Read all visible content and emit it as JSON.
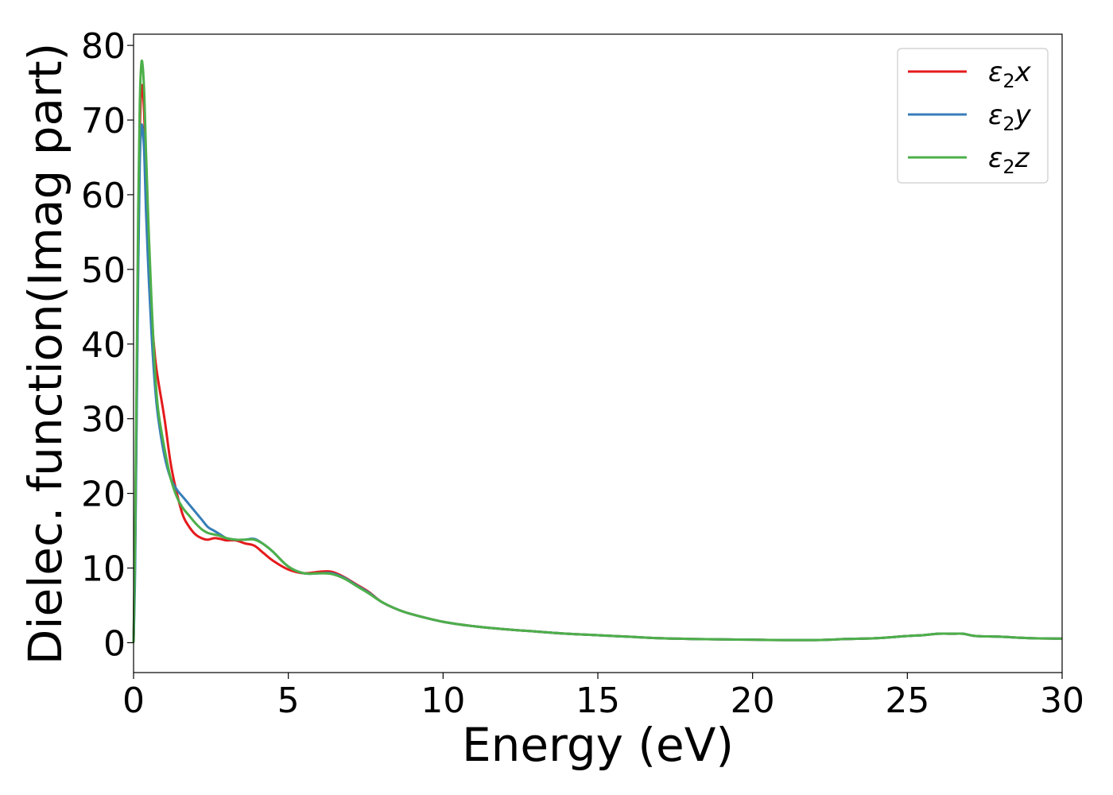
{
  "chart_data": {
    "type": "line",
    "title": "",
    "xlabel": "Energy (eV)",
    "ylabel": "Dielec. function(Imag part)",
    "xlim": [
      0,
      30
    ],
    "ylim": [
      -4,
      81.5
    ],
    "xticks": [
      0,
      5,
      10,
      15,
      20,
      25,
      30
    ],
    "yticks": [
      0,
      10,
      20,
      30,
      40,
      50,
      60,
      70,
      80
    ],
    "grid": false,
    "legend_position": "top-right",
    "series": [
      {
        "name": "ε₂x",
        "legend_base": "ε",
        "legend_sub": "2",
        "legend_suffix": "x",
        "color": "#e41a1c",
        "x": [
          0,
          0.05,
          0.1,
          0.15,
          0.2,
          0.25,
          0.3,
          0.35,
          0.4,
          0.5,
          0.6,
          0.7,
          0.8,
          1.0,
          1.2,
          1.4,
          1.6,
          1.8,
          2.0,
          2.2,
          2.4,
          2.6,
          2.8,
          3.0,
          3.3,
          3.6,
          3.9,
          4.2,
          4.5,
          5.0,
          5.5,
          6.0,
          6.4,
          6.8,
          7.2,
          7.6,
          8.0,
          8.5,
          9.0,
          10.0,
          11.0,
          12.0,
          13.0,
          14.0,
          15.0,
          16.0,
          17.0,
          18.0,
          19.0,
          20.0,
          21.0,
          22.0,
          22.5,
          23.0,
          24.0,
          25.0,
          25.5,
          26.0,
          26.5,
          26.8,
          27.2,
          28.0,
          29.0,
          30.0
        ],
        "y": [
          0,
          12,
          32,
          52,
          68,
          74,
          74,
          70,
          63,
          52,
          43,
          38,
          35,
          30,
          24,
          20,
          17,
          15.5,
          14.5,
          14,
          13.8,
          14,
          13.9,
          13.7,
          13.7,
          13.3,
          13,
          12,
          11,
          9.8,
          9.3,
          9.5,
          9.5,
          8.8,
          7.8,
          6.8,
          5.5,
          4.5,
          3.8,
          2.8,
          2.2,
          1.8,
          1.5,
          1.2,
          1.0,
          0.8,
          0.6,
          0.5,
          0.45,
          0.4,
          0.35,
          0.35,
          0.4,
          0.5,
          0.6,
          0.9,
          1.0,
          1.2,
          1.2,
          1.2,
          0.9,
          0.8,
          0.6,
          0.55
        ]
      },
      {
        "name": "ε₂y",
        "legend_base": "ε",
        "legend_sub": "2",
        "legend_suffix": "y",
        "color": "#377eb8",
        "x": [
          0,
          0.05,
          0.1,
          0.15,
          0.2,
          0.25,
          0.3,
          0.35,
          0.4,
          0.5,
          0.6,
          0.7,
          0.8,
          1.0,
          1.2,
          1.4,
          1.6,
          1.8,
          2.0,
          2.2,
          2.4,
          2.6,
          2.8,
          3.0,
          3.3,
          3.6,
          3.9,
          4.2,
          4.5,
          5.0,
          5.5,
          6.0,
          6.4,
          6.8,
          7.2,
          7.6,
          8.0,
          8.5,
          9.0,
          10.0,
          11.0,
          12.0,
          13.0,
          14.0,
          15.0,
          16.0,
          17.0,
          18.0,
          19.0,
          20.0,
          21.0,
          22.0,
          22.5,
          23.0,
          24.0,
          25.0,
          25.5,
          26.0,
          26.5,
          26.8,
          27.2,
          28.0,
          29.0,
          30.0
        ],
        "y": [
          0,
          10,
          30,
          50,
          64,
          69,
          68.5,
          65,
          58,
          48,
          40,
          34,
          30,
          25,
          22,
          20.5,
          19.5,
          18.5,
          17.5,
          16.5,
          15.5,
          15,
          14.5,
          14,
          13.8,
          13.8,
          13.9,
          13.2,
          12.2,
          10.2,
          9.3,
          9.3,
          9.3,
          8.7,
          7.7,
          6.7,
          5.5,
          4.5,
          3.8,
          2.8,
          2.2,
          1.8,
          1.5,
          1.2,
          1.0,
          0.8,
          0.6,
          0.5,
          0.45,
          0.4,
          0.35,
          0.35,
          0.4,
          0.5,
          0.6,
          0.9,
          1.0,
          1.2,
          1.2,
          1.2,
          0.9,
          0.8,
          0.6,
          0.55
        ]
      },
      {
        "name": "ε₂z",
        "legend_base": "ε",
        "legend_sub": "2",
        "legend_suffix": "z",
        "color": "#4daf4a",
        "x": [
          0,
          0.05,
          0.1,
          0.15,
          0.2,
          0.25,
          0.3,
          0.35,
          0.4,
          0.5,
          0.6,
          0.7,
          0.8,
          1.0,
          1.2,
          1.4,
          1.6,
          1.8,
          2.0,
          2.2,
          2.4,
          2.6,
          2.8,
          3.0,
          3.3,
          3.6,
          3.9,
          4.2,
          4.5,
          5.0,
          5.5,
          6.0,
          6.4,
          6.8,
          7.2,
          7.6,
          8.0,
          8.5,
          9.0,
          10.0,
          11.0,
          12.0,
          13.0,
          14.0,
          15.0,
          16.0,
          17.0,
          18.0,
          19.0,
          20.0,
          21.0,
          22.0,
          22.5,
          23.0,
          24.0,
          25.0,
          25.5,
          26.0,
          26.5,
          26.8,
          27.2,
          28.0,
          29.0,
          30.0
        ],
        "y": [
          0,
          14,
          36,
          58,
          72,
          77.5,
          77,
          73,
          66,
          54,
          44,
          36,
          31,
          26,
          22,
          19.5,
          18,
          17,
          16,
          15.2,
          14.7,
          14.5,
          14.3,
          14,
          13.8,
          13.8,
          13.8,
          13.2,
          12.2,
          10.2,
          9.3,
          9.3,
          9.2,
          8.6,
          7.6,
          6.6,
          5.5,
          4.5,
          3.8,
          2.8,
          2.2,
          1.8,
          1.5,
          1.2,
          1.0,
          0.8,
          0.6,
          0.5,
          0.45,
          0.4,
          0.35,
          0.35,
          0.4,
          0.5,
          0.6,
          0.9,
          1.0,
          1.2,
          1.2,
          1.2,
          0.9,
          0.8,
          0.6,
          0.55
        ]
      }
    ]
  }
}
